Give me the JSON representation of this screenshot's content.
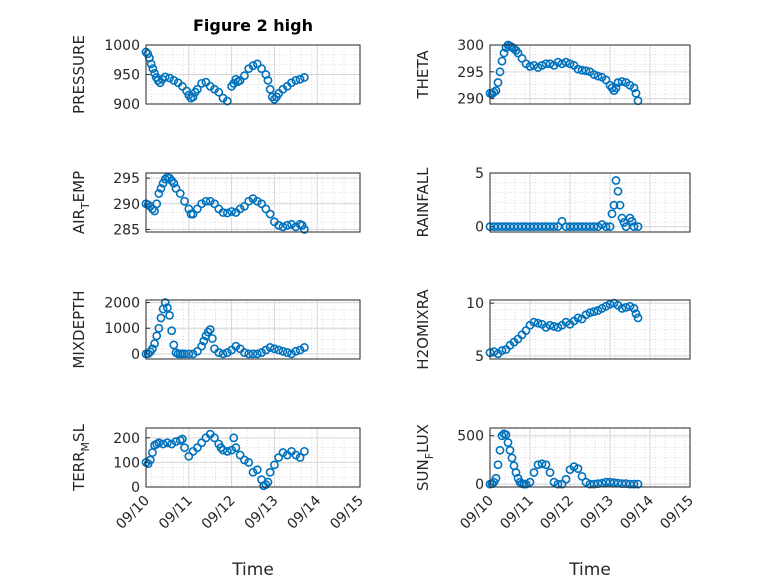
{
  "figure": {
    "title": "Figure 2 high"
  },
  "chart_data": [
    {
      "type": "scatter",
      "title": "Figure 2 high",
      "ylabel": [
        {
          "text": "PRESSURE"
        }
      ],
      "ylim": [
        900,
        1000
      ],
      "yticks": [
        "900",
        "950",
        "1000"
      ],
      "xticks": [],
      "xlabel": "",
      "x": [
        0.0,
        0.04,
        0.08,
        0.12,
        0.16,
        0.2,
        0.24,
        0.28,
        0.33,
        0.38,
        0.45,
        0.55,
        0.65,
        0.75,
        0.85,
        0.95,
        1.0,
        1.05,
        1.1,
        1.15,
        1.2,
        1.3,
        1.4,
        1.5,
        1.6,
        1.7,
        1.8,
        1.9,
        2.0,
        2.05,
        2.1,
        2.15,
        2.2,
        2.3,
        2.4,
        2.5,
        2.6,
        2.7,
        2.8,
        2.85,
        2.9,
        2.95,
        3.0,
        3.05,
        3.1,
        3.2,
        3.3,
        3.4,
        3.5,
        3.6,
        3.7
      ],
      "y": [
        988,
        985,
        978,
        968,
        960,
        952,
        945,
        940,
        936,
        942,
        946,
        944,
        940,
        936,
        930,
        922,
        915,
        910,
        912,
        920,
        925,
        935,
        937,
        930,
        925,
        920,
        910,
        905,
        930,
        935,
        942,
        938,
        940,
        948,
        960,
        965,
        968,
        960,
        950,
        940,
        925,
        912,
        908,
        912,
        918,
        925,
        930,
        936,
        940,
        942,
        945
      ]
    },
    {
      "type": "scatter",
      "ylabel": [
        {
          "text": "THETA"
        }
      ],
      "ylim": [
        289,
        300
      ],
      "yticks": [
        "290",
        "295",
        "300"
      ],
      "xticks": [],
      "xlabel": "",
      "x": [
        0.0,
        0.05,
        0.1,
        0.15,
        0.2,
        0.25,
        0.3,
        0.35,
        0.4,
        0.45,
        0.5,
        0.55,
        0.6,
        0.65,
        0.7,
        0.8,
        0.9,
        1.0,
        1.1,
        1.2,
        1.3,
        1.4,
        1.5,
        1.6,
        1.7,
        1.8,
        1.9,
        2.0,
        2.1,
        2.2,
        2.3,
        2.4,
        2.5,
        2.6,
        2.7,
        2.8,
        2.9,
        3.0,
        3.05,
        3.1,
        3.15,
        3.2,
        3.3,
        3.4,
        3.5,
        3.6,
        3.65,
        3.7
      ],
      "y": [
        291,
        290.9,
        291.2,
        291.5,
        293,
        295,
        297,
        298.5,
        299.5,
        300,
        299.8,
        299.6,
        299.3,
        299,
        298.5,
        297.5,
        296.5,
        296,
        296.2,
        295.8,
        296.2,
        296.5,
        296.5,
        296.2,
        296.8,
        296.5,
        296.8,
        296.5,
        296.2,
        295.5,
        295.3,
        295.2,
        295,
        294.5,
        294.2,
        294,
        293.5,
        292.5,
        292,
        291.5,
        292,
        293,
        293.2,
        293,
        292.5,
        292,
        291,
        289.6
      ]
    },
    {
      "type": "scatter",
      "ylabel": [
        {
          "text": "AIR",
          "sub": "T",
          "rest": "EMP"
        }
      ],
      "ylim": [
        284.5,
        296
      ],
      "yticks": [
        "285",
        "290",
        "295"
      ],
      "xticks": [],
      "xlabel": "",
      "x": [
        0.0,
        0.05,
        0.1,
        0.15,
        0.2,
        0.25,
        0.3,
        0.35,
        0.4,
        0.45,
        0.5,
        0.55,
        0.6,
        0.65,
        0.7,
        0.8,
        0.9,
        1.0,
        1.05,
        1.1,
        1.2,
        1.3,
        1.4,
        1.5,
        1.6,
        1.7,
        1.8,
        1.9,
        2.0,
        2.1,
        2.2,
        2.3,
        2.4,
        2.5,
        2.6,
        2.7,
        2.8,
        2.9,
        3.0,
        3.1,
        3.2,
        3.3,
        3.4,
        3.5,
        3.6,
        3.65,
        3.7
      ],
      "y": [
        290,
        289.8,
        289.5,
        289,
        288.6,
        290,
        292,
        293,
        294,
        294.8,
        295.2,
        295,
        294.5,
        294,
        293,
        292,
        290.5,
        289,
        288,
        288,
        289,
        290,
        290.5,
        290.5,
        290,
        289,
        288.3,
        288.2,
        288.5,
        288.3,
        289,
        289.5,
        290.5,
        291,
        290.5,
        290,
        289,
        288,
        286.5,
        285.8,
        285.5,
        285.8,
        286,
        285.5,
        286,
        285.8,
        285
      ]
    },
    {
      "type": "scatter",
      "ylabel": [
        {
          "text": "RAINFALL"
        }
      ],
      "ylim": [
        -0.5,
        5
      ],
      "yticks": [
        "0",
        "5"
      ],
      "xticks": [],
      "xlabel": "",
      "x": [
        0.0,
        0.1,
        0.2,
        0.3,
        0.4,
        0.5,
        0.6,
        0.7,
        0.8,
        0.9,
        1.0,
        1.1,
        1.2,
        1.3,
        1.4,
        1.5,
        1.6,
        1.7,
        1.8,
        1.9,
        2.0,
        2.1,
        2.2,
        2.3,
        2.4,
        2.5,
        2.6,
        2.7,
        2.8,
        2.9,
        3.0,
        3.05,
        3.1,
        3.15,
        3.2,
        3.25,
        3.3,
        3.35,
        3.4,
        3.5,
        3.55,
        3.6,
        3.7
      ],
      "y": [
        0,
        0,
        0,
        0,
        0,
        0,
        0,
        0,
        0,
        0,
        0,
        0,
        0,
        0,
        0,
        0,
        0,
        0,
        0.5,
        0,
        0,
        0,
        0,
        0,
        0,
        0,
        0,
        0,
        0.2,
        0,
        0,
        1.2,
        2.0,
        4.3,
        3.3,
        2.0,
        0.8,
        0.4,
        0,
        0.8,
        0.5,
        0,
        0
      ]
    },
    {
      "type": "scatter",
      "ylabel": [
        {
          "text": "MIXDEPTH"
        }
      ],
      "ylim": [
        -200,
        2100
      ],
      "yticks": [
        "0",
        "1000",
        "2000"
      ],
      "xticks": [],
      "xlabel": "",
      "x": [
        0.0,
        0.05,
        0.1,
        0.15,
        0.2,
        0.25,
        0.3,
        0.35,
        0.4,
        0.45,
        0.5,
        0.55,
        0.6,
        0.65,
        0.7,
        0.75,
        0.8,
        0.85,
        0.9,
        1.0,
        1.1,
        1.2,
        1.3,
        1.35,
        1.4,
        1.45,
        1.5,
        1.55,
        1.6,
        1.7,
        1.8,
        1.9,
        2.0,
        2.1,
        2.2,
        2.3,
        2.4,
        2.5,
        2.6,
        2.7,
        2.8,
        2.9,
        3.0,
        3.1,
        3.2,
        3.3,
        3.4,
        3.5,
        3.6,
        3.7
      ],
      "y": [
        0,
        10,
        80,
        200,
        400,
        700,
        1000,
        1400,
        1750,
        2000,
        1800,
        1500,
        900,
        350,
        50,
        0,
        0,
        0,
        0,
        0,
        0,
        100,
        300,
        500,
        700,
        850,
        950,
        600,
        200,
        50,
        0,
        50,
        150,
        300,
        200,
        50,
        0,
        0,
        0,
        50,
        150,
        250,
        200,
        150,
        100,
        50,
        0,
        100,
        150,
        250
      ]
    },
    {
      "type": "scatter",
      "ylabel": [
        {
          "text": "H2OMIXRA"
        }
      ],
      "ylim": [
        4.7,
        10.3
      ],
      "yticks": [
        "5",
        "10"
      ],
      "xticks": [],
      "xlabel": "",
      "x": [
        0.0,
        0.1,
        0.2,
        0.3,
        0.4,
        0.5,
        0.6,
        0.7,
        0.8,
        0.9,
        1.0,
        1.1,
        1.2,
        1.3,
        1.4,
        1.5,
        1.6,
        1.7,
        1.8,
        1.9,
        2.0,
        2.1,
        2.2,
        2.3,
        2.4,
        2.5,
        2.6,
        2.7,
        2.8,
        2.9,
        3.0,
        3.1,
        3.2,
        3.3,
        3.4,
        3.5,
        3.6,
        3.65,
        3.7
      ],
      "y": [
        5.3,
        5.4,
        5.2,
        5.5,
        5.6,
        6,
        6.3,
        6.6,
        7,
        7.4,
        7.9,
        8.2,
        8.1,
        8,
        7.7,
        7.9,
        7.8,
        7.7,
        7.9,
        8.2,
        8,
        8.3,
        8.6,
        8.5,
        8.9,
        9.1,
        9.2,
        9.3,
        9.5,
        9.7,
        9.9,
        10,
        9.8,
        9.5,
        9.6,
        9.7,
        9.5,
        9.0,
        8.6
      ]
    },
    {
      "type": "scatter",
      "ylabel": [
        {
          "text": "TERR",
          "sub": "M",
          "rest": "SL"
        }
      ],
      "ylim": [
        0,
        240
      ],
      "yticks": [
        "0",
        "100",
        "200"
      ],
      "xticks": [
        "09/10",
        "09/11",
        "09/12",
        "09/13",
        "09/14",
        "09/15"
      ],
      "xlabel": "Time",
      "x": [
        0.0,
        0.05,
        0.1,
        0.15,
        0.2,
        0.25,
        0.3,
        0.4,
        0.5,
        0.6,
        0.7,
        0.8,
        0.85,
        0.9,
        1.0,
        1.1,
        1.2,
        1.3,
        1.4,
        1.5,
        1.6,
        1.7,
        1.75,
        1.8,
        1.9,
        2.0,
        2.05,
        2.1,
        2.2,
        2.3,
        2.4,
        2.5,
        2.6,
        2.7,
        2.75,
        2.8,
        2.85,
        2.9,
        3.0,
        3.1,
        3.2,
        3.3,
        3.4,
        3.5,
        3.6,
        3.7
      ],
      "y": [
        100,
        95,
        110,
        140,
        170,
        175,
        180,
        175,
        180,
        175,
        185,
        190,
        195,
        160,
        125,
        145,
        160,
        180,
        200,
        215,
        200,
        175,
        160,
        150,
        145,
        150,
        200,
        160,
        130,
        110,
        100,
        60,
        70,
        30,
        5,
        10,
        20,
        60,
        90,
        120,
        140,
        130,
        145,
        130,
        120,
        145
      ]
    },
    {
      "type": "scatter",
      "ylabel": [
        {
          "text": "SUN",
          "sub": "F",
          "rest": "LUX"
        }
      ],
      "ylim": [
        -30,
        580
      ],
      "yticks": [
        "0",
        "500"
      ],
      "xticks": [
        "09/10",
        "09/11",
        "09/12",
        "09/13",
        "09/14",
        "09/15"
      ],
      "xlabel": "Time",
      "x": [
        0.0,
        0.05,
        0.1,
        0.15,
        0.2,
        0.25,
        0.3,
        0.35,
        0.4,
        0.45,
        0.5,
        0.55,
        0.6,
        0.65,
        0.7,
        0.75,
        0.8,
        0.85,
        0.9,
        1.0,
        1.1,
        1.2,
        1.3,
        1.4,
        1.5,
        1.6,
        1.7,
        1.8,
        1.9,
        2.0,
        2.1,
        2.2,
        2.3,
        2.4,
        2.5,
        2.6,
        2.7,
        2.8,
        2.9,
        3.0,
        3.1,
        3.2,
        3.3,
        3.4,
        3.5,
        3.6,
        3.7
      ],
      "y": [
        0,
        5,
        20,
        60,
        200,
        350,
        500,
        520,
        510,
        430,
        350,
        270,
        190,
        120,
        60,
        20,
        5,
        0,
        0,
        20,
        120,
        200,
        210,
        200,
        120,
        20,
        0,
        0,
        50,
        150,
        180,
        160,
        80,
        20,
        0,
        0,
        5,
        10,
        20,
        20,
        15,
        10,
        5,
        5,
        0,
        0,
        0
      ]
    }
  ]
}
